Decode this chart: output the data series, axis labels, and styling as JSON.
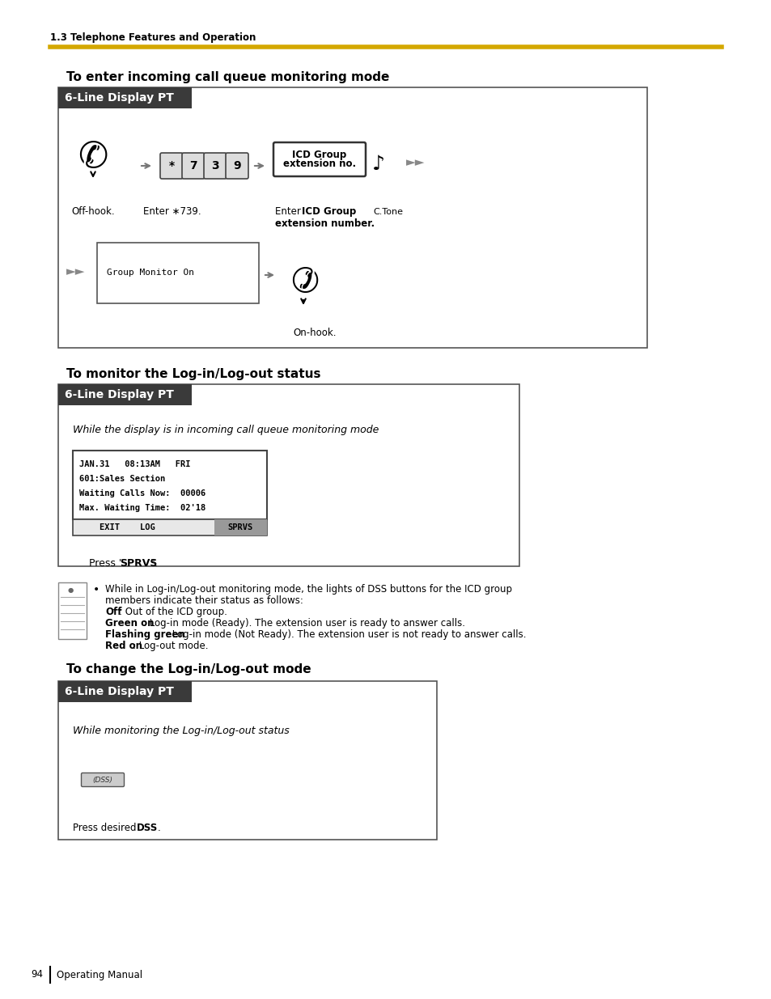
{
  "page_num": "94",
  "page_label": "Operating Manual",
  "header_text": "1.3 Telephone Features and Operation",
  "header_line_color": "#D4A800",
  "bg_color": "#FFFFFF",
  "section1_title": "To enter incoming call queue monitoring mode",
  "section2_title": "To monitor the Log-in/Log-out status",
  "section3_title": "To change the Log-in/Log-out mode",
  "box_label": "6-Line Display PT",
  "box_label_bg": "#3A3A3A",
  "box_label_color": "#FFFFFF",
  "display_text1": "Group Monitor On",
  "display_text2_lines": [
    "JAN.31   08:13AM   FRI",
    "601:Sales Section",
    "Waiting Calls Now:  00006",
    "Max. Waiting Time:  02'18"
  ],
  "softkey_left": "    EXIT    LOG",
  "softkey_right": "SPRVS",
  "italic_text1": "While the display is in incoming call queue monitoring mode",
  "italic_text2": "While monitoring the Log-in/Log-out status",
  "bullet_line1": "While in Log-in/Log-out monitoring mode, the lights of DSS buttons for the ICD group",
  "bullet_line2": "members indicate their status as follows:",
  "bullet_line3_bold": "Off",
  "bullet_line3_rest": ": Out of the ICD group.",
  "bullet_line4_bold": "Green on",
  "bullet_line4_rest": ": Log-in mode (Ready). The extension user is ready to answer calls.",
  "bullet_line5_bold": "Flashing green",
  "bullet_line5_rest": ": Log-in mode (Not Ready). The extension user is not ready to answer calls.",
  "bullet_line6_bold": "Red on",
  "bullet_line6_rest": ": Log-out mode.",
  "press_sprvs": "Press \"SPRVS\".",
  "press_dss_normal": "Press desired ",
  "press_dss_bold": "DSS",
  "press_dss_end": ".",
  "offhook_label": "Off-hook.",
  "enter739_label": "Enter ∗739.",
  "enter_icd_bold": "ICD Group",
  "enter_icd_line1": "Enter ",
  "enter_icd_line2": "extension number.",
  "ctone_label": "C.Tone",
  "onhook_label": "On-hook.",
  "icd_box_line1": "ICD Group",
  "icd_box_line2": "extension no."
}
